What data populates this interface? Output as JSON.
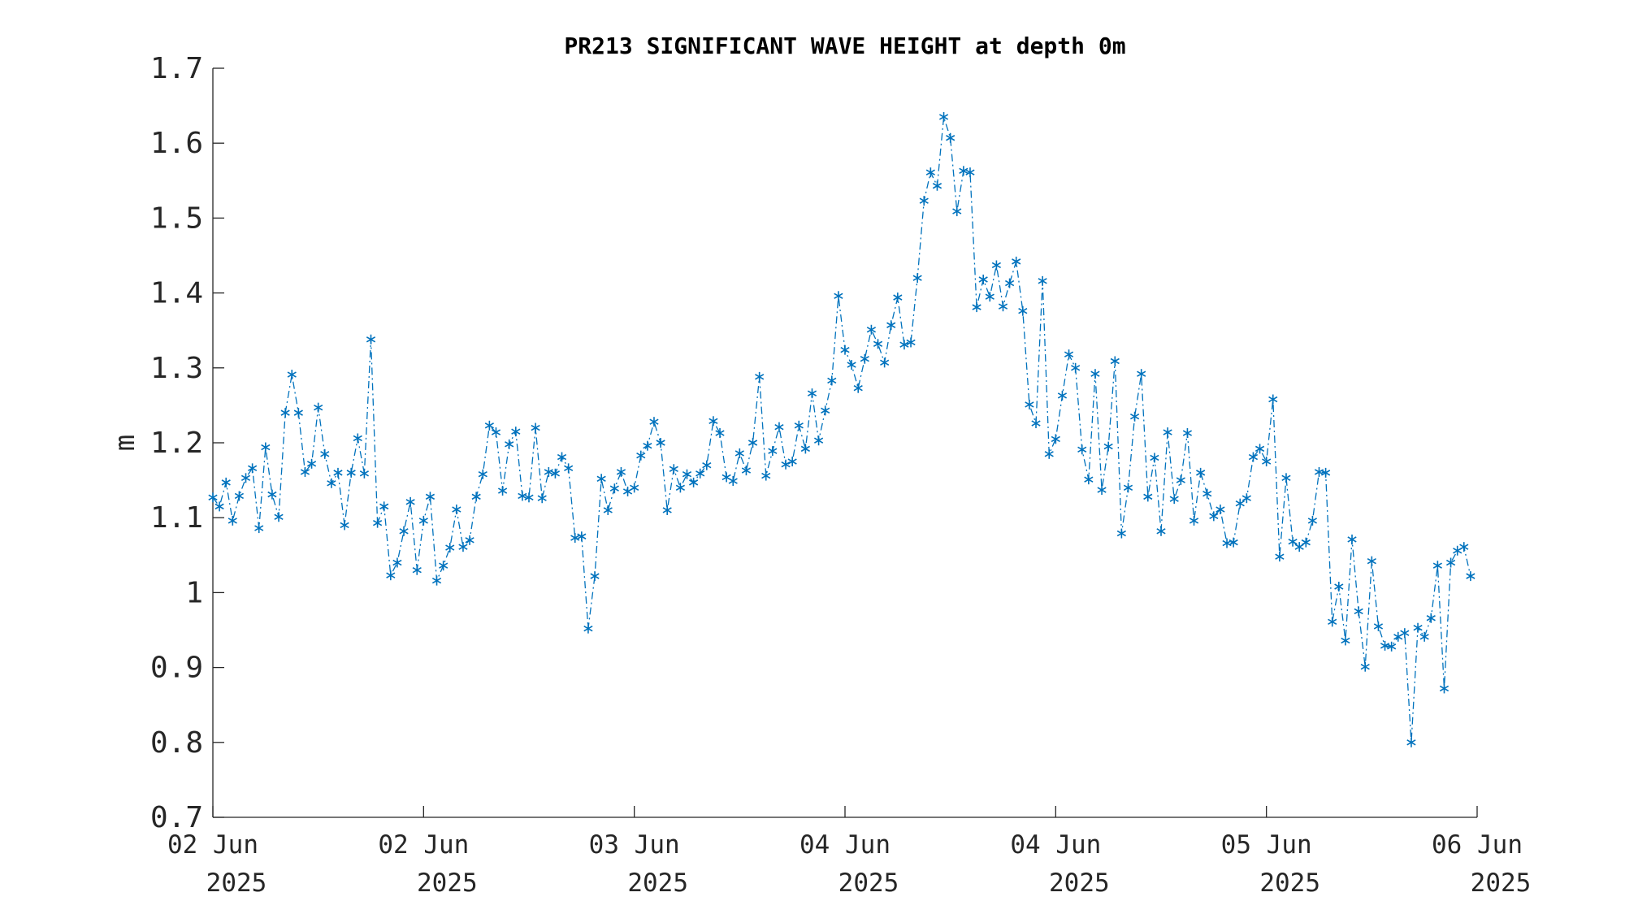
{
  "chart_data": {
    "type": "line",
    "title": "PR213 SIGNIFICANT WAVE HEIGHT at depth 0m",
    "xlabel": "",
    "ylabel": "m",
    "ylim": [
      0.7,
      1.7
    ],
    "yticks": [
      0.7,
      0.8,
      0.9,
      1.0,
      1.1,
      1.2,
      1.3,
      1.4,
      1.5,
      1.6,
      1.7
    ],
    "ytick_labels": [
      "0.7",
      "0.8",
      "0.9",
      "1",
      "1.1",
      "1.2",
      "1.3",
      "1.4",
      "1.5",
      "1.6",
      "1.7"
    ],
    "xlim": [
      "2025-06-02T00:00",
      "2025-06-06T00:00"
    ],
    "xticks": [
      "2025-06-02T00:00",
      "2025-06-02T16:00",
      "2025-06-03T08:00",
      "2025-06-04T00:00",
      "2025-06-04T16:00",
      "2025-06-05T08:00",
      "2025-06-06T00:00"
    ],
    "xtick_labels": [
      [
        "02 Jun",
        "2025"
      ],
      [
        "02 Jun",
        "2025"
      ],
      [
        "03 Jun",
        "2025"
      ],
      [
        "04 Jun",
        "2025"
      ],
      [
        "04 Jun",
        "2025"
      ],
      [
        "05 Jun",
        "2025"
      ],
      [
        "06 Jun",
        "2025"
      ]
    ],
    "grid": false,
    "series": [
      {
        "color": "#0072BD",
        "line_style": "dash-dot",
        "marker": "asterisk",
        "x_start": "2025-06-02T00:00",
        "x_step_minutes": 30,
        "values": [
          1.127,
          1.115,
          1.147,
          1.096,
          1.129,
          1.153,
          1.166,
          1.086,
          1.194,
          1.131,
          1.101,
          1.24,
          1.291,
          1.24,
          1.161,
          1.172,
          1.247,
          1.185,
          1.146,
          1.16,
          1.09,
          1.16,
          1.206,
          1.159,
          1.338,
          1.093,
          1.115,
          1.023,
          1.04,
          1.082,
          1.121,
          1.03,
          1.096,
          1.128,
          1.016,
          1.036,
          1.06,
          1.111,
          1.061,
          1.07,
          1.128,
          1.158,
          1.223,
          1.214,
          1.136,
          1.198,
          1.215,
          1.129,
          1.127,
          1.22,
          1.126,
          1.161,
          1.159,
          1.181,
          1.166,
          1.073,
          1.075,
          0.952,
          1.022,
          1.152,
          1.11,
          1.139,
          1.161,
          1.135,
          1.14,
          1.183,
          1.196,
          1.228,
          1.2,
          1.11,
          1.165,
          1.14,
          1.158,
          1.147,
          1.159,
          1.17,
          1.229,
          1.213,
          1.154,
          1.149,
          1.186,
          1.163,
          1.2,
          1.288,
          1.156,
          1.189,
          1.221,
          1.171,
          1.175,
          1.223,
          1.192,
          1.266,
          1.203,
          1.243,
          1.283,
          1.396,
          1.324,
          1.304,
          1.273,
          1.312,
          1.351,
          1.332,
          1.307,
          1.357,
          1.394,
          1.331,
          1.334,
          1.42,
          1.523,
          1.561,
          1.543,
          1.635,
          1.607,
          1.509,
          1.563,
          1.561,
          1.381,
          1.418,
          1.395,
          1.437,
          1.382,
          1.413,
          1.442,
          1.376,
          1.251,
          1.226,
          1.416,
          1.185,
          1.205,
          1.263,
          1.318,
          1.3,
          1.191,
          1.151,
          1.292,
          1.137,
          1.195,
          1.309,
          1.079,
          1.14,
          1.235,
          1.292,
          1.128,
          1.18,
          1.082,
          1.214,
          1.125,
          1.15,
          1.213,
          1.096,
          1.16,
          1.132,
          1.102,
          1.111,
          1.066,
          1.067,
          1.119,
          1.126,
          1.181,
          1.192,
          1.175,
          1.258,
          1.048,
          1.153,
          1.068,
          1.061,
          1.067,
          1.096,
          1.161,
          1.16,
          0.961,
          1.008,
          0.936,
          1.071,
          0.975,
          0.901,
          1.042,
          0.955,
          0.929,
          0.928,
          0.941,
          0.946,
          0.8,
          0.953,
          0.941,
          0.966,
          1.036,
          0.872,
          1.04,
          1.056,
          1.061,
          1.022
        ]
      }
    ]
  }
}
